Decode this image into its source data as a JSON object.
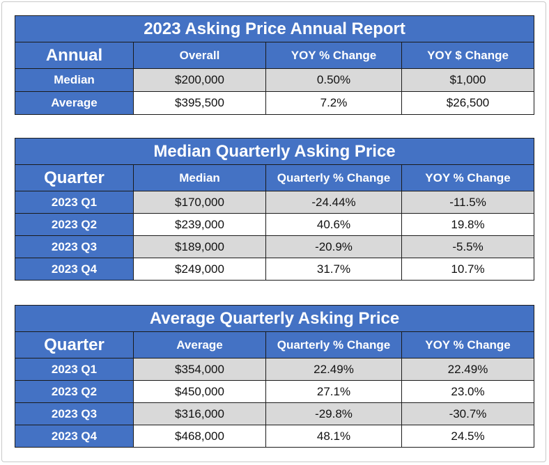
{
  "annual": {
    "title": "2023 Asking Price Annual Report",
    "headers": [
      "Annual",
      "Overall",
      "YOY % Change",
      "YOY $ Change"
    ],
    "rows": [
      {
        "label": "Median",
        "values": [
          "$200,000",
          "0.50%",
          "$1,000"
        ]
      },
      {
        "label": "Average",
        "values": [
          "$395,500",
          "7.2%",
          "$26,500"
        ]
      }
    ]
  },
  "median_quarterly": {
    "title": "Median Quarterly Asking Price",
    "headers": [
      "Quarter",
      "Median",
      "Quarterly % Change",
      "YOY % Change"
    ],
    "rows": [
      {
        "label": "2023 Q1",
        "values": [
          "$170,000",
          "-24.44%",
          "-11.5%"
        ]
      },
      {
        "label": "2023 Q2",
        "values": [
          "$239,000",
          "40.6%",
          "19.8%"
        ]
      },
      {
        "label": "2023 Q3",
        "values": [
          "$189,000",
          "-20.9%",
          "-5.5%"
        ]
      },
      {
        "label": "2023 Q4",
        "values": [
          "$249,000",
          "31.7%",
          "10.7%"
        ]
      }
    ]
  },
  "average_quarterly": {
    "title": "Average Quarterly Asking Price",
    "headers": [
      "Quarter",
      "Average",
      "Quarterly % Change",
      "YOY % Change"
    ],
    "rows": [
      {
        "label": "2023 Q1",
        "values": [
          "$354,000",
          "22.49%",
          "22.49%"
        ]
      },
      {
        "label": "2023 Q2",
        "values": [
          "$450,000",
          "27.1%",
          "23.0%"
        ]
      },
      {
        "label": "2023 Q3",
        "values": [
          "$316,000",
          "-29.8%",
          "-30.7%"
        ]
      },
      {
        "label": "2023 Q4",
        "values": [
          "$468,000",
          "48.1%",
          "24.5%"
        ]
      }
    ]
  },
  "colors": {
    "header_blue": "#4472c4",
    "shaded_row": "#d9d9d9",
    "border": "#1a1a1a"
  }
}
